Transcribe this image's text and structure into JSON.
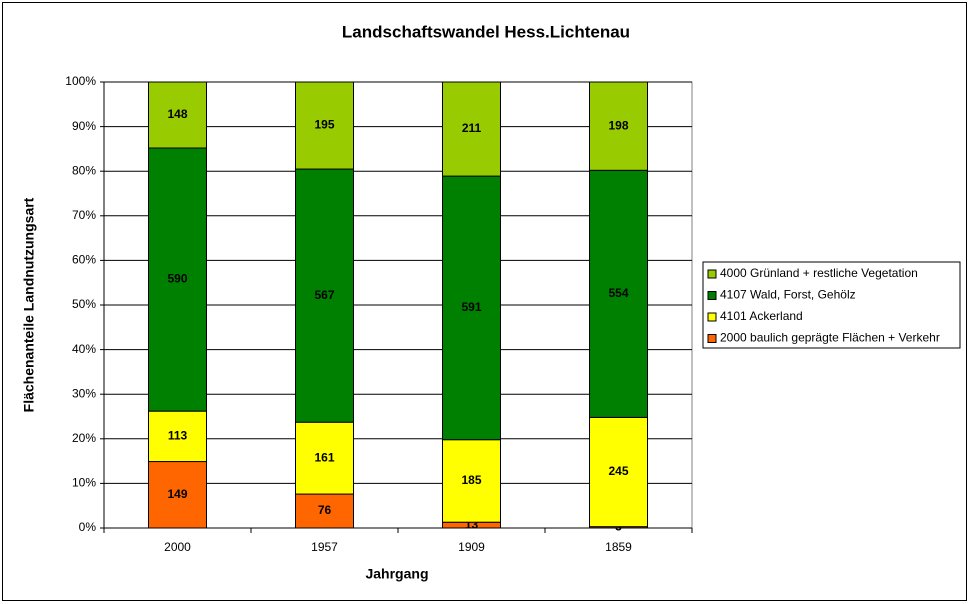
{
  "chart_data": {
    "type": "bar",
    "stacking": "percent",
    "title": "Landschaftswandel Hess.Lichtenau",
    "x_label": "Jahrgang",
    "y_label": "Flächenanteile Landnutzungsart",
    "categories": [
      "2000",
      "1957",
      "1909",
      "1859"
    ],
    "series": [
      {
        "name": "2000 baulich geprägte Flächen + Verkehr",
        "color": "#ff6600",
        "values": [
          149,
          76,
          13,
          3
        ]
      },
      {
        "name": "4101 Ackerland",
        "color": "#ffff00",
        "values": [
          113,
          161,
          185,
          245
        ]
      },
      {
        "name": "4107 Wald, Forst, Gehölz",
        "color": "#008000",
        "values": [
          590,
          567,
          591,
          554
        ]
      },
      {
        "name": "4000 Grünland + restliche Vegetation",
        "color": "#99cc00",
        "values": [
          148,
          195,
          211,
          198
        ]
      }
    ],
    "ylim": [
      0,
      100
    ],
    "yticks": [
      {
        "value": 0,
        "label": "0%"
      },
      {
        "value": 10,
        "label": "10%"
      },
      {
        "value": 20,
        "label": "20%"
      },
      {
        "value": 30,
        "label": "30%"
      },
      {
        "value": 40,
        "label": "40%"
      },
      {
        "value": 50,
        "label": "50%"
      },
      {
        "value": 60,
        "label": "60%"
      },
      {
        "value": 70,
        "label": "70%"
      },
      {
        "value": 80,
        "label": "80%"
      },
      {
        "value": 90,
        "label": "90%"
      },
      {
        "value": 100,
        "label": "100%"
      }
    ],
    "grid": true,
    "legend": "right"
  }
}
